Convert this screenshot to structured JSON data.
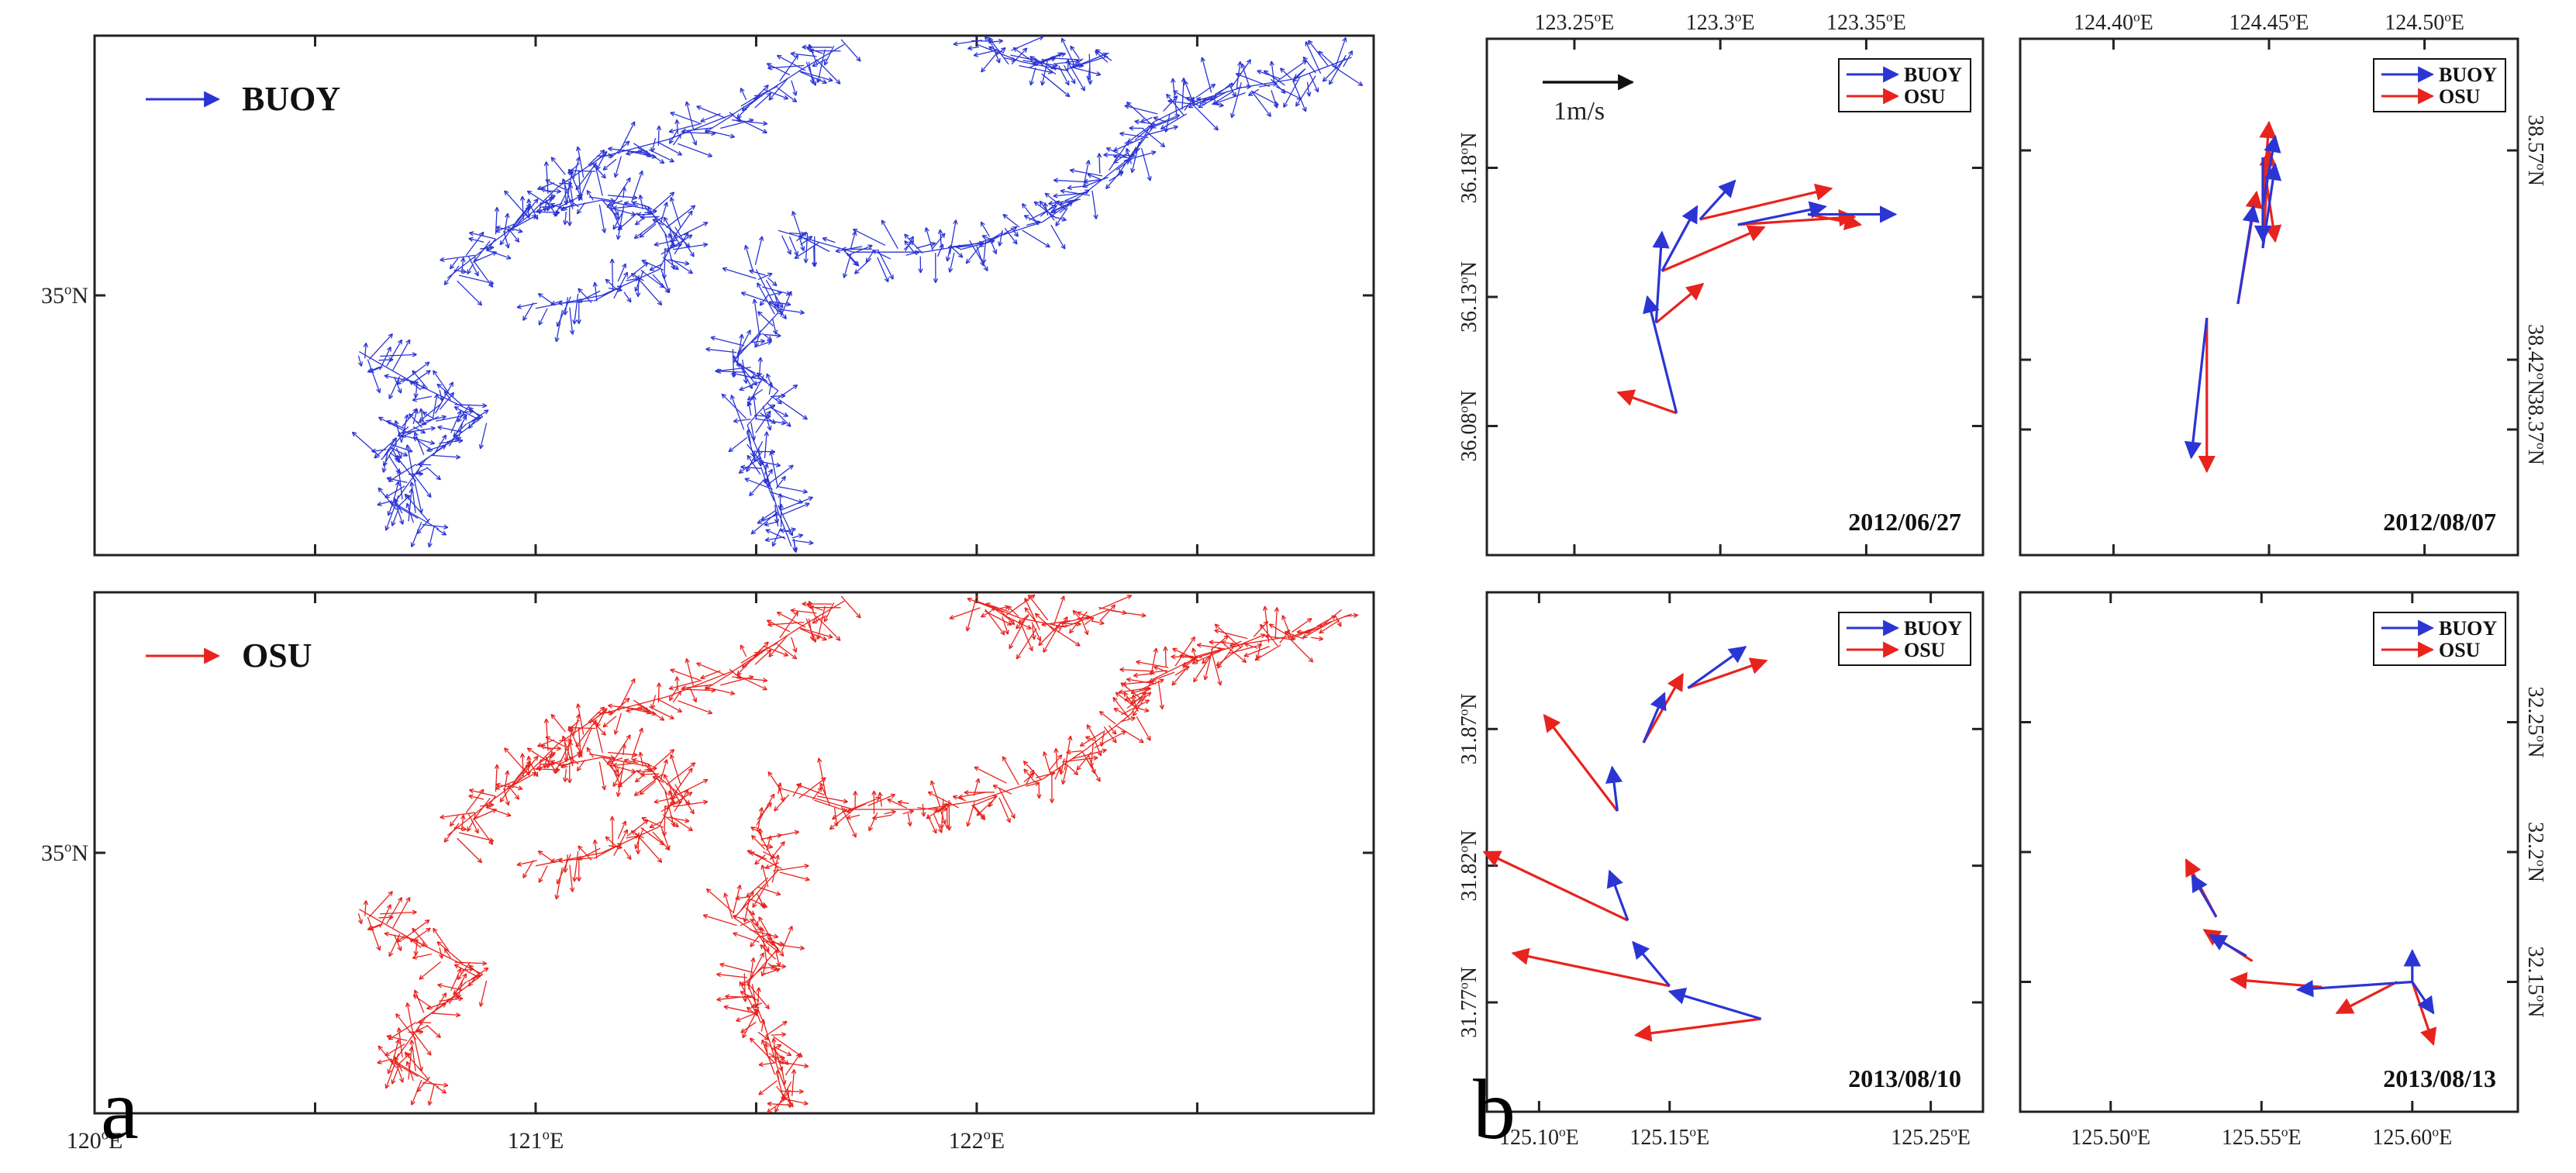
{
  "colors": {
    "buoy": "#2b35d4",
    "osu": "#e8231e",
    "axis": "#222222"
  },
  "chart_data": [
    {
      "type": "quiver",
      "panel": "a",
      "subplots": [
        {
          "legend": "BUOY",
          "color_key": "buoy",
          "xlim": [
            120.0,
            122.9
          ],
          "ylim": [
            34.4,
            35.6
          ],
          "ytick_labels": [
            {
              "value": 35.0,
              "label": "35°N"
            }
          ],
          "xticks": [
            120.5,
            121.0,
            121.5,
            122.0,
            122.5
          ],
          "tracks": [
            [
              [
                121.7,
                35.58
              ],
              [
                121.6,
                35.52
              ],
              [
                121.45,
                35.42
              ],
              [
                121.3,
                35.36
              ],
              [
                121.15,
                35.32
              ],
              [
                121.05,
                35.25
              ],
              [
                120.98,
                35.18
              ],
              [
                120.9,
                35.12
              ],
              [
                120.8,
                35.04
              ]
            ],
            [
              [
                121.05,
                35.2
              ],
              [
                121.15,
                35.22
              ],
              [
                121.25,
                35.2
              ],
              [
                121.32,
                35.14
              ],
              [
                121.28,
                35.06
              ],
              [
                121.15,
                35.0
              ],
              [
                121.0,
                34.97
              ]
            ],
            [
              [
                120.6,
                34.87
              ],
              [
                120.72,
                34.8
              ],
              [
                120.88,
                34.72
              ],
              [
                120.75,
                34.62
              ],
              [
                120.68,
                34.52
              ],
              [
                120.78,
                34.46
              ]
            ],
            [
              [
                120.78,
                34.72
              ],
              [
                120.7,
                34.68
              ],
              [
                120.65,
                34.62
              ]
            ],
            [
              [
                121.5,
                35.06
              ],
              [
                121.55,
                34.96
              ],
              [
                121.45,
                34.85
              ],
              [
                121.55,
                34.78
              ],
              [
                121.48,
                34.7
              ],
              [
                121.52,
                34.6
              ],
              [
                121.55,
                34.5
              ],
              [
                121.58,
                34.42
              ]
            ],
            [
              [
                121.55,
                35.15
              ],
              [
                121.72,
                35.1
              ],
              [
                121.88,
                35.1
              ],
              [
                122.0,
                35.12
              ],
              [
                122.15,
                35.17
              ],
              [
                122.25,
                35.24
              ],
              [
                122.35,
                35.32
              ],
              [
                122.4,
                35.4
              ],
              [
                122.5,
                35.45
              ],
              [
                122.6,
                35.48
              ],
              [
                122.72,
                35.5
              ],
              [
                122.85,
                35.55
              ]
            ],
            [
              [
                122.0,
                35.58
              ],
              [
                122.1,
                35.54
              ],
              [
                122.2,
                35.52
              ],
              [
                122.3,
                35.56
              ]
            ]
          ]
        },
        {
          "legend": "OSU",
          "color_key": "osu",
          "xlim": [
            120.0,
            122.9
          ],
          "ylim": [
            34.4,
            35.6
          ],
          "ytick_labels": [
            {
              "value": 35.0,
              "label": "35°N"
            }
          ],
          "xtick_labels": [
            {
              "value": 120.0,
              "label": "120°E"
            },
            {
              "value": 121.0,
              "label": "121°E"
            },
            {
              "value": 122.0,
              "label": "122°E"
            }
          ],
          "xticks": [
            120.5,
            121.0,
            121.5,
            122.0,
            122.5
          ],
          "tracks": [
            [
              [
                121.7,
                35.58
              ],
              [
                121.6,
                35.52
              ],
              [
                121.45,
                35.42
              ],
              [
                121.3,
                35.36
              ],
              [
                121.15,
                35.32
              ],
              [
                121.05,
                35.25
              ],
              [
                120.98,
                35.18
              ],
              [
                120.9,
                35.12
              ],
              [
                120.8,
                35.04
              ]
            ],
            [
              [
                121.05,
                35.2
              ],
              [
                121.15,
                35.22
              ],
              [
                121.25,
                35.2
              ],
              [
                121.32,
                35.14
              ],
              [
                121.28,
                35.06
              ],
              [
                121.15,
                35.0
              ],
              [
                121.0,
                34.97
              ]
            ],
            [
              [
                120.6,
                34.87
              ],
              [
                120.72,
                34.8
              ],
              [
                120.88,
                34.72
              ],
              [
                120.75,
                34.62
              ],
              [
                120.68,
                34.52
              ],
              [
                120.78,
                34.46
              ]
            ],
            [
              [
                121.5,
                35.06
              ],
              [
                121.55,
                34.96
              ],
              [
                121.45,
                34.85
              ],
              [
                121.55,
                34.78
              ],
              [
                121.48,
                34.7
              ],
              [
                121.52,
                34.6
              ],
              [
                121.55,
                34.5
              ],
              [
                121.58,
                34.42
              ]
            ],
            [
              [
                121.55,
                35.15
              ],
              [
                121.72,
                35.1
              ],
              [
                121.88,
                35.1
              ],
              [
                122.0,
                35.12
              ],
              [
                122.15,
                35.17
              ],
              [
                122.25,
                35.24
              ],
              [
                122.35,
                35.32
              ],
              [
                122.4,
                35.4
              ],
              [
                122.5,
                35.45
              ],
              [
                122.6,
                35.48
              ],
              [
                122.72,
                35.5
              ],
              [
                122.85,
                35.55
              ]
            ],
            [
              [
                122.0,
                35.58
              ],
              [
                122.1,
                35.54
              ],
              [
                122.2,
                35.52
              ],
              [
                122.3,
                35.56
              ]
            ]
          ]
        }
      ]
    },
    {
      "type": "quiver",
      "panel": "b",
      "scale_label": "1m/s",
      "legend": [
        "BUOY",
        "OSU"
      ],
      "subplots": [
        {
          "date": "2012/06/27",
          "xlim": [
            123.22,
            123.39
          ],
          "ylim": [
            36.03,
            36.23
          ],
          "xtick_labels": [
            {
              "value": 123.25,
              "label": "123.25°E"
            },
            {
              "value": 123.3,
              "label": "123.3°E"
            },
            {
              "value": 123.35,
              "label": "123.35°E"
            }
          ],
          "ytick_labels": [
            {
              "value": 36.18,
              "label": "36.18°N"
            },
            {
              "value": 36.13,
              "label": "36.13°N"
            },
            {
              "value": 36.08,
              "label": "36.08°N"
            }
          ],
          "ytick_side": "left",
          "xtick_side": "top",
          "buoy": [
            [
              123.285,
              36.085,
              -0.01,
              0.045
            ],
            [
              123.278,
              36.12,
              0.002,
              0.035
            ],
            [
              123.28,
              36.14,
              0.012,
              0.025
            ],
            [
              123.293,
              36.16,
              0.012,
              0.015
            ],
            [
              123.306,
              36.158,
              0.03,
              0.007
            ],
            [
              123.33,
              36.162,
              0.03,
              0.0
            ]
          ],
          "osu": [
            [
              123.285,
              36.085,
              -0.02,
              0.008
            ],
            [
              123.278,
              36.12,
              0.016,
              0.015
            ],
            [
              123.28,
              36.14,
              0.035,
              0.017
            ],
            [
              123.293,
              36.16,
              0.045,
              0.012
            ],
            [
              123.306,
              36.158,
              0.04,
              0.003
            ],
            [
              123.33,
              36.162,
              0.018,
              -0.004
            ]
          ]
        },
        {
          "date": "2012/08/07",
          "xlim": [
            124.37,
            124.53
          ],
          "ylim": [
            38.28,
            38.65
          ],
          "xtick_labels": [
            {
              "value": 124.4,
              "label": "124.40°E"
            },
            {
              "value": 124.45,
              "label": "124.45°E"
            },
            {
              "value": 124.5,
              "label": "124.50°E"
            }
          ],
          "ytick_labels": [
            {
              "value": 38.57,
              "label": "38.57°N"
            },
            {
              "value": 38.42,
              "label": "38.42°N"
            },
            {
              "value": 38.37,
              "label": "38.37°N"
            }
          ],
          "ytick_side": "right",
          "xtick_side": "top",
          "buoy": [
            [
              124.43,
              38.45,
              -0.005,
              -0.1
            ],
            [
              124.44,
              38.46,
              0.005,
              0.07
            ],
            [
              124.448,
              38.5,
              0.004,
              0.06
            ],
            [
              124.448,
              38.53,
              0.004,
              0.05
            ],
            [
              124.448,
              38.565,
              0.0,
              -0.06
            ]
          ],
          "osu": [
            [
              124.43,
              38.45,
              0.0,
              -0.11
            ],
            [
              124.44,
              38.46,
              0.006,
              0.08
            ],
            [
              124.448,
              38.5,
              0.002,
              0.07
            ],
            [
              124.448,
              38.53,
              0.002,
              0.06
            ],
            [
              124.448,
              38.565,
              0.004,
              -0.06
            ]
          ]
        },
        {
          "date": "2013/08/10",
          "xlim": [
            125.08,
            125.27
          ],
          "ylim": [
            31.73,
            31.92
          ],
          "xtick_labels": [
            {
              "value": 125.1,
              "label": "125.10°E"
            },
            {
              "value": 125.15,
              "label": "125.15°E"
            },
            {
              "value": 125.25,
              "label": "125.25°E"
            }
          ],
          "ytick_labels": [
            {
              "value": 31.87,
              "label": "31.87°N"
            },
            {
              "value": 31.82,
              "label": "31.82°N"
            },
            {
              "value": 31.77,
              "label": "31.77°N"
            }
          ],
          "ytick_side": "left",
          "xtick_side": "bottom",
          "buoy": [
            [
              125.185,
              31.764,
              -0.035,
              0.01
            ],
            [
              125.15,
              31.776,
              -0.014,
              0.016
            ],
            [
              125.134,
              31.8,
              -0.007,
              0.018
            ],
            [
              125.13,
              31.84,
              -0.002,
              0.016
            ],
            [
              125.14,
              31.865,
              0.008,
              0.018
            ],
            [
              125.157,
              31.885,
              0.022,
              0.015
            ]
          ],
          "osu": [
            [
              125.185,
              31.764,
              -0.048,
              -0.006
            ],
            [
              125.15,
              31.776,
              -0.06,
              0.012
            ],
            [
              125.134,
              31.8,
              -0.055,
              0.025
            ],
            [
              125.13,
              31.84,
              -0.028,
              0.035
            ],
            [
              125.14,
              31.865,
              0.015,
              0.025
            ],
            [
              125.157,
              31.885,
              0.03,
              0.01
            ]
          ]
        },
        {
          "date": "2013/08/13",
          "xlim": [
            125.47,
            125.635
          ],
          "ylim": [
            32.1,
            32.3
          ],
          "xtick_labels": [
            {
              "value": 125.5,
              "label": "125.50°E"
            },
            {
              "value": 125.55,
              "label": "125.55°E"
            },
            {
              "value": 125.6,
              "label": "125.60°E"
            }
          ],
          "ytick_labels": [
            {
              "value": 32.25,
              "label": "32.25°N"
            },
            {
              "value": 32.2,
              "label": "32.2°N"
            },
            {
              "value": 32.15,
              "label": "32.15°N"
            }
          ],
          "ytick_side": "right",
          "xtick_side": "bottom",
          "buoy": [
            [
              125.6,
              32.15,
              0.0,
              0.012
            ],
            [
              125.6,
              32.15,
              0.007,
              -0.012
            ],
            [
              125.6,
              32.15,
              -0.038,
              -0.003
            ],
            [
              125.545,
              32.16,
              -0.012,
              0.008
            ],
            [
              125.535,
              32.175,
              -0.008,
              0.016
            ]
          ],
          "osu": [
            [
              125.6,
              32.15,
              0.007,
              -0.024
            ],
            [
              125.595,
              32.15,
              -0.02,
              -0.012
            ],
            [
              125.57,
              32.148,
              -0.03,
              0.003
            ],
            [
              125.547,
              32.158,
              -0.016,
              0.012
            ],
            [
              125.535,
              32.175,
              -0.01,
              0.022
            ]
          ]
        }
      ]
    }
  ]
}
